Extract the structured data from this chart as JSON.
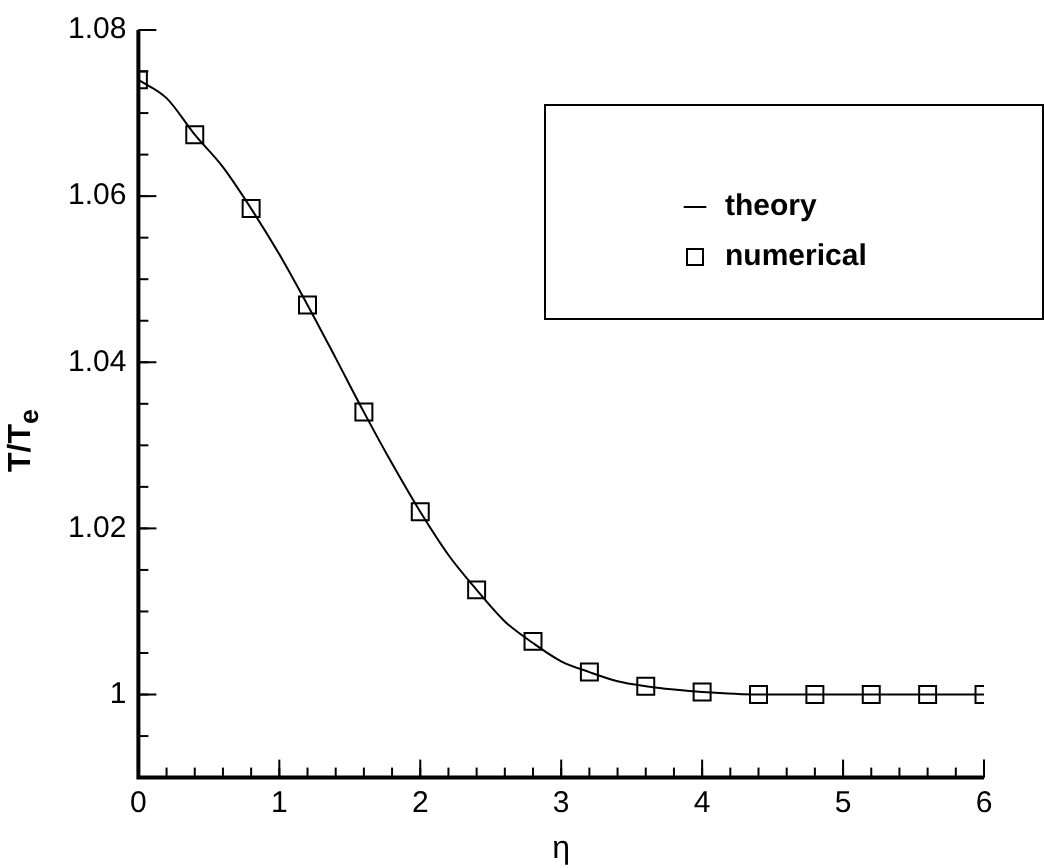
{
  "chart_data": {
    "type": "line",
    "xlabel": "η",
    "ylabel": "T/T$_{e}$",
    "xlim": [
      0,
      6
    ],
    "xticks": [
      0,
      1,
      2,
      3,
      4,
      5,
      6
    ],
    "ylim": [
      0.99,
      1.08
    ],
    "yticks": [
      1,
      1.02,
      1.04,
      1.06,
      1.08
    ],
    "grid": false,
    "legend": "top right",
    "series": [
      {
        "name": "theory",
        "type": "line",
        "color": "#000000",
        "marker": "none",
        "line_style": "solid",
        "x": [
          0,
          0.2,
          0.4,
          0.6,
          0.8,
          1.0,
          1.2,
          1.4,
          1.6,
          1.8,
          2.0,
          2.2,
          2.4,
          2.6,
          2.8,
          3.0,
          3.2,
          3.4,
          3.6,
          3.8,
          4.0,
          4.4,
          4.8,
          5.2,
          5.6,
          6.0
        ],
        "values": [
          1.074,
          1.0718,
          1.0674,
          1.0635,
          1.0585,
          1.053,
          1.0469,
          1.0405,
          1.034,
          1.0278,
          1.022,
          1.0168,
          1.0126,
          1.0088,
          1.0062,
          1.004,
          1.0027,
          1.0016,
          1.001,
          1.0006,
          1.0003,
          1.0,
          1.0,
          1.0,
          1.0,
          1.0
        ]
      },
      {
        "name": "numerical",
        "type": "scatter",
        "color": "#000000",
        "marker": "square",
        "x": [
          0,
          0.4,
          0.8,
          1.2,
          1.6,
          2.0,
          2.4,
          2.8,
          3.2,
          3.6,
          4.0,
          4.4,
          4.8,
          5.2,
          5.6,
          6.0
        ],
        "values": [
          1.074,
          1.0674,
          1.0585,
          1.0469,
          1.034,
          1.022,
          1.0126,
          1.0064,
          1.0027,
          1.001,
          1.0003,
          1.0,
          1.0,
          1.0,
          1.0,
          1.0
        ]
      }
    ]
  }
}
